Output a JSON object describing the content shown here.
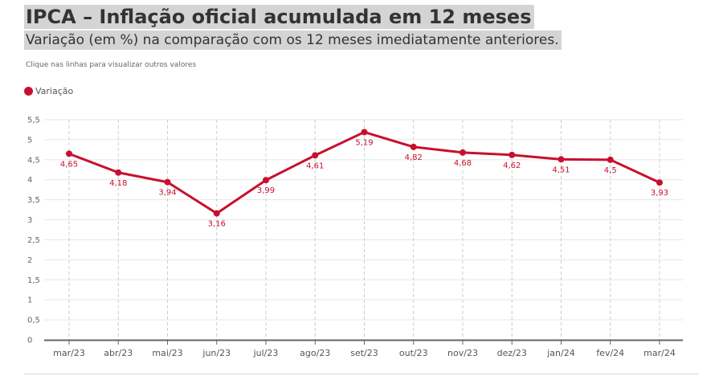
{
  "header": {
    "title": "IPCA – Inflação oficial acumulada em 12 meses",
    "subtitle": "Variação (em %) na comparação com os 12 meses imediatamente anteriores.",
    "hint": "Clique nas linhas para visualizar outros valores"
  },
  "legend": {
    "label": "Variação",
    "color": "#c8102e"
  },
  "chart_data": {
    "type": "line",
    "categories": [
      "mar/23",
      "abr/23",
      "mai/23",
      "jun/23",
      "jul/23",
      "ago/23",
      "set/23",
      "out/23",
      "nov/23",
      "dez/23",
      "jan/24",
      "fev/24",
      "mar/24"
    ],
    "series": [
      {
        "name": "Variação",
        "color": "#c8102e",
        "values": [
          4.65,
          4.18,
          3.94,
          3.16,
          3.99,
          4.61,
          5.19,
          4.82,
          4.68,
          4.62,
          4.51,
          4.5,
          3.93
        ],
        "labels": [
          "4,65",
          "4,18",
          "3,94",
          "3,16",
          "3,99",
          "4,61",
          "5,19",
          "4,82",
          "4,68",
          "4,62",
          "4,51",
          "4,5",
          "3,93"
        ]
      }
    ],
    "ylim": [
      0,
      5.5
    ],
    "yticks": [
      0,
      0.5,
      1,
      1.5,
      2,
      2.5,
      3,
      3.5,
      4,
      4.5,
      5,
      5.5
    ],
    "ytick_labels": [
      "0",
      "0,5",
      "1",
      "1,5",
      "2",
      "2,5",
      "3",
      "3,5",
      "4",
      "4,5",
      "5",
      "5,5"
    ],
    "grid": true,
    "legend_position": "top-left",
    "title": "IPCA – Inflação oficial acumulada em 12 meses",
    "xlabel": "",
    "ylabel": ""
  }
}
